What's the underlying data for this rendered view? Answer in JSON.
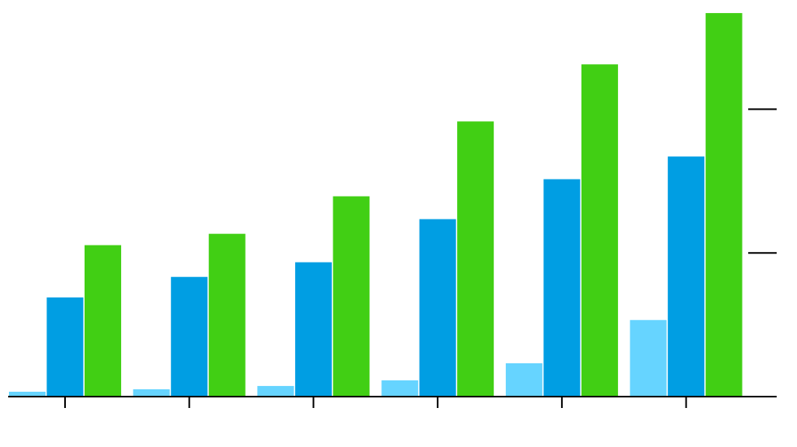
{
  "chart_data": {
    "type": "bar",
    "categories": [
      null,
      null,
      null,
      null,
      null,
      null
    ],
    "series": [
      {
        "color": "#66d4ff",
        "values": [
          3.4,
          5.1,
          7.4,
          11.3,
          23.2,
          53.3
        ]
      },
      {
        "color": "#009ee3",
        "values": [
          69,
          83.3,
          93.5,
          123.5,
          151.3,
          167.1
        ]
      },
      {
        "color": "#41cf14",
        "values": [
          105.4,
          113.3,
          139.4,
          191.5,
          231.2,
          266.9
        ]
      }
    ],
    "ylim": [
      0,
      276
    ],
    "yticks": [
      100,
      200
    ],
    "grid": false
  }
}
